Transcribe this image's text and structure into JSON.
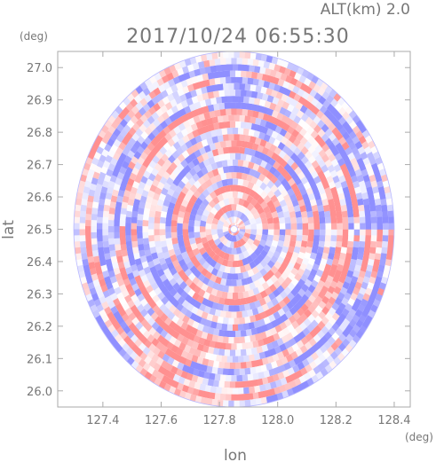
{
  "header": {
    "altitude_label": "ALT(km) 2.0",
    "timestamp": "2017/10/24 06:55:30",
    "y_unit": "(deg)",
    "x_unit": "(deg)"
  },
  "chart_data": {
    "type": "heatmap",
    "xlabel": "lon",
    "ylabel": "lat",
    "xlim": [
      127.245,
      128.455
    ],
    "ylim": [
      25.95,
      27.05
    ],
    "x_ticks": [
      "127.4",
      "127.6",
      "127.8",
      "128.0",
      "128.2",
      "128.4"
    ],
    "y_ticks": [
      "26.0",
      "26.1",
      "26.2",
      "26.3",
      "26.4",
      "26.5",
      "26.6",
      "26.7",
      "26.8",
      "26.9",
      "27.0"
    ],
    "radar_center": [
      127.85,
      26.5
    ],
    "radar_radius_deg": 0.55,
    "grid": false,
    "colormap": {
      "negative": "#8f8fff",
      "zero": "#ffffff",
      "positive": "#ff9090"
    },
    "frame_color": "#aaaaaa"
  }
}
